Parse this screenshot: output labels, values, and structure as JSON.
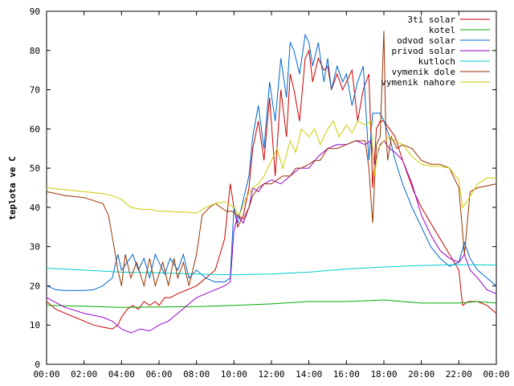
{
  "chart_data": {
    "type": "line",
    "title": "",
    "xlabel": "",
    "ylabel": "teplota ve C",
    "xlim": [
      0,
      24
    ],
    "ylim": [
      0,
      90
    ],
    "grid": false,
    "legend_position": "top-right",
    "x_tick_labels": [
      "00:00",
      "02:00",
      "04:00",
      "06:00",
      "08:00",
      "10:00",
      "12:00",
      "14:00",
      "16:00",
      "18:00",
      "20:00",
      "22:00",
      "00:00"
    ],
    "y_tick_labels": [
      "0",
      "10",
      "20",
      "30",
      "40",
      "50",
      "60",
      "70",
      "80",
      "90"
    ],
    "x_ticks": [
      0,
      2,
      4,
      6,
      8,
      10,
      12,
      14,
      16,
      18,
      20,
      22,
      24
    ],
    "y_ticks": [
      0,
      10,
      20,
      30,
      40,
      50,
      60,
      70,
      80,
      90
    ],
    "series": [
      {
        "name": "3ti solar",
        "color": "#cc0000",
        "x": [
          0,
          0.5,
          1,
          1.5,
          2,
          2.5,
          3,
          3.5,
          3.8,
          4,
          4.3,
          4.6,
          4.9,
          5.2,
          5.5,
          5.8,
          6,
          6.3,
          6.6,
          7,
          7.5,
          8,
          8.5,
          9,
          9.5,
          9.8,
          10,
          10.2,
          10.5,
          10.8,
          11,
          11.3,
          11.6,
          11.9,
          12.2,
          12.5,
          12.8,
          13,
          13.2,
          13.5,
          13.8,
          14,
          14.2,
          14.5,
          14.8,
          15,
          15.2,
          15.5,
          15.8,
          16,
          16.3,
          16.6,
          16.9,
          17.2,
          17.4,
          17.6,
          17.8,
          18,
          18.3,
          18.6,
          19,
          19.3,
          19.6,
          20,
          20.5,
          21,
          21.5,
          22,
          22.2,
          22.5,
          23,
          23.5,
          24
        ],
        "y": [
          16,
          14,
          13,
          12,
          11,
          10,
          9.5,
          9,
          10,
          12,
          14,
          15,
          14,
          16,
          15,
          16,
          15,
          17,
          17,
          18,
          19,
          20,
          22,
          24,
          32,
          46,
          40,
          35,
          38,
          45,
          55,
          62,
          52,
          68,
          48,
          70,
          58,
          74,
          70,
          62,
          78,
          80,
          72,
          78,
          75,
          76,
          70,
          74,
          70,
          72,
          75,
          62,
          70,
          74,
          45,
          60,
          62,
          62,
          60,
          58,
          52,
          48,
          44,
          40,
          36,
          32,
          28,
          24,
          15,
          16,
          16,
          15,
          13
        ]
      },
      {
        "name": "kotel",
        "color": "#00aa00",
        "x": [
          0,
          2,
          4,
          6,
          8,
          10,
          12,
          14,
          16,
          18,
          19,
          20,
          22,
          23,
          24
        ],
        "y": [
          15,
          14.8,
          14.5,
          14.6,
          14.7,
          15,
          15.4,
          16,
          16,
          16.4,
          16,
          15.6,
          15.6,
          16,
          15.6
        ]
      },
      {
        "name": "odvod solar",
        "color": "#0066cc",
        "x": [
          0,
          0.5,
          1,
          1.5,
          2,
          2.5,
          3,
          3.5,
          3.8,
          4,
          4.3,
          4.6,
          4.9,
          5.2,
          5.5,
          5.8,
          6,
          6.3,
          6.6,
          7,
          7.3,
          7.6,
          8,
          8.5,
          9,
          9.5,
          9.8,
          10,
          10.2,
          10.5,
          10.8,
          11,
          11.3,
          11.6,
          11.9,
          12.2,
          12.5,
          12.8,
          13,
          13.2,
          13.5,
          13.8,
          14,
          14.2,
          14.5,
          14.8,
          15,
          15.2,
          15.5,
          15.8,
          16,
          16.3,
          16.6,
          16.9,
          17.2,
          17.4,
          17.6,
          17.8,
          18,
          18.3,
          18.6,
          19,
          19.5,
          20,
          20.5,
          21,
          21.5,
          22,
          22.3,
          22.6,
          23,
          23.5,
          24
        ],
        "y": [
          20,
          19,
          18.8,
          18.8,
          18.8,
          19,
          20,
          22,
          28,
          24,
          26,
          28,
          24,
          27,
          22,
          28,
          26,
          23,
          27,
          24,
          28,
          22,
          24,
          22,
          21,
          21,
          22,
          40,
          36,
          42,
          48,
          58,
          66,
          55,
          72,
          62,
          78,
          68,
          82,
          80,
          74,
          84,
          82,
          76,
          82,
          72,
          78,
          70,
          76,
          72,
          74,
          66,
          72,
          76,
          52,
          64,
          64,
          64,
          62,
          58,
          52,
          46,
          40,
          35,
          30,
          27,
          25,
          26,
          31,
          27,
          24,
          22,
          20
        ]
      },
      {
        "name": "privod solar",
        "color": "#9900cc",
        "x": [
          0,
          1,
          2,
          3,
          3.5,
          4,
          4.5,
          5,
          5.5,
          6,
          6.5,
          7,
          7.5,
          8,
          8.5,
          9,
          9.5,
          9.8,
          10,
          10.2,
          10.5,
          10.8,
          11,
          11.3,
          11.6,
          12,
          12.5,
          13,
          13.5,
          14,
          14.5,
          15,
          15.5,
          16,
          16.5,
          17,
          17.3,
          17.5,
          17.8,
          18,
          18.3,
          18.6,
          19,
          19.5,
          20,
          20.5,
          21,
          21.5,
          22,
          22.3,
          22.6,
          23,
          23.5,
          24
        ],
        "y": [
          17,
          14.5,
          13,
          12,
          11,
          9,
          8,
          9,
          8.5,
          10,
          11,
          13,
          15,
          17,
          18,
          19,
          20,
          21,
          34,
          38,
          36,
          40,
          45,
          44,
          46,
          47,
          46,
          48,
          50,
          50,
          53,
          55,
          56,
          56,
          57,
          56,
          57,
          51,
          56,
          57,
          55,
          54,
          52,
          46,
          38,
          33,
          29,
          27,
          26,
          28,
          24,
          22,
          19,
          18
        ]
      },
      {
        "name": "kutloch",
        "color": "#00cccc",
        "x": [
          0,
          2,
          4,
          6,
          8,
          10,
          12,
          14,
          16,
          18,
          20,
          22,
          24
        ],
        "y": [
          24.5,
          24,
          23.5,
          23.3,
          23,
          22.8,
          23,
          23.5,
          24.3,
          24.8,
          25.2,
          25.4,
          25.3
        ]
      },
      {
        "name": "vymenik dole",
        "color": "#993300",
        "x": [
          0,
          0.5,
          1,
          2,
          3,
          3.3,
          3.6,
          3.8,
          4,
          4.2,
          4.5,
          4.8,
          5.2,
          5.5,
          5.8,
          6.2,
          6.5,
          6.8,
          7,
          7.3,
          7.6,
          8,
          8.3,
          8.7,
          9,
          9.3,
          9.6,
          9.9,
          10.2,
          10.5,
          10.8,
          11,
          11.3,
          11.6,
          12,
          12.3,
          12.6,
          13,
          13.3,
          13.6,
          14,
          14.3,
          14.6,
          15,
          15.5,
          16,
          16.5,
          17,
          17.2,
          17.4,
          17.6,
          17.8,
          18,
          18.1,
          18.2,
          18.4,
          18.7,
          19,
          19.5,
          20,
          20.5,
          21,
          21.5,
          22,
          22.3,
          22.6,
          23,
          23.5,
          24
        ],
        "y": [
          44,
          43.5,
          43,
          42.5,
          41,
          38,
          30,
          24,
          20,
          28,
          22,
          26,
          20,
          27,
          20,
          26,
          20,
          27,
          22,
          26,
          20,
          28,
          38,
          40,
          41,
          40,
          39,
          39,
          38,
          37,
          40,
          43,
          45,
          46,
          46,
          47,
          48,
          48,
          50,
          50,
          51,
          52,
          52,
          55,
          55,
          56,
          57,
          57,
          50,
          36,
          56,
          58,
          85,
          60,
          52,
          58,
          55,
          56,
          55,
          52,
          51,
          51,
          50,
          45,
          28,
          44,
          45,
          45.5,
          46
        ]
      },
      {
        "name": "vymenik nahore",
        "color": "#cccc00",
        "x": [
          0,
          1,
          2,
          3,
          3.5,
          4,
          4.5,
          5,
          5.5,
          6,
          6.5,
          7,
          7.5,
          8,
          8.5,
          9,
          9.5,
          10,
          10.3,
          10.6,
          11,
          11.3,
          11.6,
          12,
          12.3,
          12.6,
          13,
          13.3,
          13.6,
          14,
          14.3,
          14.6,
          15,
          15.3,
          15.6,
          16,
          16.3,
          16.6,
          17,
          17.3,
          17.5,
          17.7,
          18,
          18.3,
          18.6,
          19,
          19.5,
          20,
          20.5,
          21,
          21.5,
          22,
          22.2,
          22.5,
          23,
          23.5,
          24
        ],
        "y": [
          45,
          44.5,
          44,
          43.5,
          43,
          42,
          40,
          39.5,
          39.5,
          39,
          39,
          38.8,
          38.8,
          38.5,
          40,
          41,
          41.5,
          40,
          38,
          42,
          45,
          46,
          48,
          52,
          55,
          50,
          57,
          54,
          60,
          58,
          60,
          56,
          60,
          62,
          58,
          61,
          59,
          62,
          61,
          62,
          48,
          55,
          57,
          58,
          57,
          56,
          53,
          51,
          50.5,
          50.5,
          50,
          47,
          40,
          42,
          46,
          47.5,
          47.5
        ]
      }
    ]
  }
}
